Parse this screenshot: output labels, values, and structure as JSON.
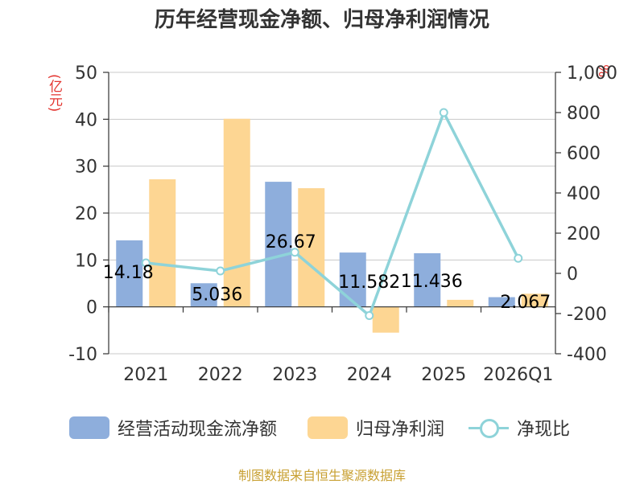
{
  "chart_data": {
    "type": "bar",
    "title": "历年经营现金净额、归母净利润情况",
    "y_unit_left": "(亿元)",
    "y_unit_right": "%",
    "categories": [
      "2021",
      "2022",
      "2023",
      "2024",
      "2025",
      "2026Q1"
    ],
    "ylim_left": [
      -10,
      50
    ],
    "yticks_left": [
      "50",
      "40",
      "30",
      "20",
      "10",
      "0",
      "-10"
    ],
    "ylim_right": [
      -400,
      1000
    ],
    "yticks_right": [
      "1,000",
      "800",
      "600",
      "400",
      "200",
      "0",
      "-200",
      "-400"
    ],
    "grid": true,
    "legend_position": "bottom",
    "series": [
      {
        "name": "经营活动现金流净额",
        "type": "bar",
        "color": "#8eaedc",
        "values": [
          14.18,
          5.036,
          26.67,
          11.582,
          11.436,
          2.067
        ],
        "labels": [
          "14.18",
          "5.036",
          "26.67",
          "11.582",
          "11.436",
          "2.067"
        ]
      },
      {
        "name": "归母净利润",
        "type": "bar",
        "color": "#fdd693",
        "values": [
          27.2,
          40.1,
          25.3,
          -5.5,
          1.5,
          2.8
        ]
      },
      {
        "name": "净现比",
        "type": "line",
        "axis": "right",
        "color": "#8ed3d9",
        "values": [
          52,
          12,
          105,
          -210,
          800,
          75
        ]
      }
    ]
  },
  "source": "制图数据来自恒生聚源数据库"
}
